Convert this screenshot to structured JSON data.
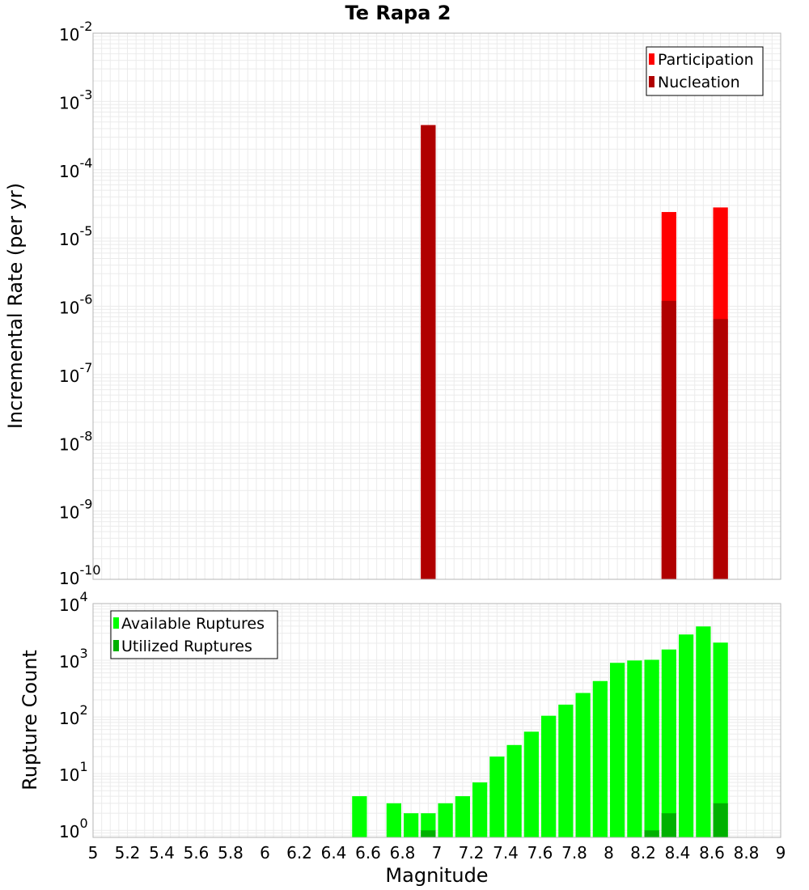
{
  "chart_data": [
    {
      "type": "bar",
      "panel": "top",
      "title": "Te Rapa 2",
      "xlabel": "Magnitude",
      "ylabel": "Incremental Rate (per yr)",
      "yscale": "log",
      "ylim": [
        1e-10,
        0.01
      ],
      "xlim": [
        5,
        9
      ],
      "bin_width": 0.1,
      "y_ticks": [
        {
          "base": "10",
          "exp": "-10"
        },
        {
          "base": "10",
          "exp": "-9"
        },
        {
          "base": "10",
          "exp": "-8"
        },
        {
          "base": "10",
          "exp": "-7"
        },
        {
          "base": "10",
          "exp": "-6"
        },
        {
          "base": "10",
          "exp": "-5"
        },
        {
          "base": "10",
          "exp": "-4"
        },
        {
          "base": "10",
          "exp": "-3"
        },
        {
          "base": "10",
          "exp": "-2"
        }
      ],
      "legend_position": "top-right",
      "series": [
        {
          "name": "Participation",
          "color": "#ff0000",
          "points": [
            {
              "x": 6.95,
              "y": 0.00045
            },
            {
              "x": 8.35,
              "y": 2.4e-05
            },
            {
              "x": 8.65,
              "y": 2.8e-05
            }
          ]
        },
        {
          "name": "Nucleation",
          "color": "#b00000",
          "points": [
            {
              "x": 6.95,
              "y": 0.00045
            },
            {
              "x": 8.35,
              "y": 1.2e-06
            },
            {
              "x": 8.65,
              "y": 6.5e-07
            }
          ]
        }
      ]
    },
    {
      "type": "bar",
      "panel": "bottom",
      "xlabel": "Magnitude",
      "ylabel": "Rupture Count",
      "yscale": "log",
      "ylim": [
        0.75,
        10000.0
      ],
      "xlim": [
        5,
        9
      ],
      "bin_width": 0.1,
      "x_ticks": [
        "5",
        "5.2",
        "5.4",
        "5.6",
        "5.8",
        "6",
        "6.2",
        "6.4",
        "6.6",
        "6.8",
        "7",
        "7.2",
        "7.4",
        "7.6",
        "7.8",
        "8",
        "8.2",
        "8.4",
        "8.6",
        "8.8",
        "9"
      ],
      "y_ticks": [
        {
          "base": "10",
          "exp": "0"
        },
        {
          "base": "10",
          "exp": "1"
        },
        {
          "base": "10",
          "exp": "2"
        },
        {
          "base": "10",
          "exp": "3"
        },
        {
          "base": "10",
          "exp": "4"
        }
      ],
      "legend_position": "top-left",
      "series": [
        {
          "name": "Available Ruptures",
          "color": "#00ff00",
          "points": [
            {
              "x": 6.55,
              "y": 4
            },
            {
              "x": 6.75,
              "y": 3
            },
            {
              "x": 6.85,
              "y": 2
            },
            {
              "x": 6.95,
              "y": 2
            },
            {
              "x": 7.05,
              "y": 3
            },
            {
              "x": 7.15,
              "y": 4
            },
            {
              "x": 7.25,
              "y": 7
            },
            {
              "x": 7.35,
              "y": 20
            },
            {
              "x": 7.45,
              "y": 32
            },
            {
              "x": 7.55,
              "y": 55
            },
            {
              "x": 7.65,
              "y": 105
            },
            {
              "x": 7.75,
              "y": 165
            },
            {
              "x": 7.85,
              "y": 265
            },
            {
              "x": 7.95,
              "y": 430
            },
            {
              "x": 8.05,
              "y": 900
            },
            {
              "x": 8.15,
              "y": 990
            },
            {
              "x": 8.25,
              "y": 1020
            },
            {
              "x": 8.35,
              "y": 1550
            },
            {
              "x": 8.45,
              "y": 2850
            },
            {
              "x": 8.55,
              "y": 3950
            },
            {
              "x": 8.65,
              "y": 2050
            }
          ]
        },
        {
          "name": "Utilized Ruptures",
          "color": "#00b000",
          "points": [
            {
              "x": 6.95,
              "y": 1
            },
            {
              "x": 8.25,
              "y": 1
            },
            {
              "x": 8.35,
              "y": 2
            },
            {
              "x": 8.65,
              "y": 3
            }
          ]
        }
      ]
    }
  ]
}
